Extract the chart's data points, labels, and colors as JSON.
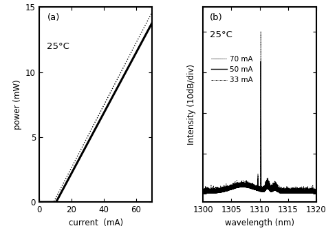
{
  "panel_a": {
    "label": "(a)",
    "temp_label": "25°C",
    "xlabel": "current  (mA)",
    "ylabel": "power (mW)",
    "xlim": [
      0,
      70
    ],
    "ylim": [
      0,
      15
    ],
    "xticks": [
      0,
      20,
      40,
      60
    ],
    "yticks": [
      0,
      5,
      10,
      15
    ],
    "threshold_solid": 10.5,
    "threshold_dotted": 9.0,
    "slope_solid": 0.232,
    "slope_dotted": 0.24
  },
  "panel_b": {
    "label": "(b)",
    "temp_label": "25°C",
    "xlabel": "wavelength (nm)",
    "ylabel": "Intensity (10dB/div)",
    "xlim": [
      1300,
      1320
    ],
    "xticks": [
      1300,
      1305,
      1310,
      1315,
      1320
    ],
    "peak_wl": 1310.2,
    "legend": [
      "70 mA",
      "50 mA",
      "33 mA"
    ],
    "legend_styles": [
      "dotted",
      "solid",
      "dashdot"
    ]
  },
  "background_color": "#ffffff",
  "line_color": "#000000"
}
